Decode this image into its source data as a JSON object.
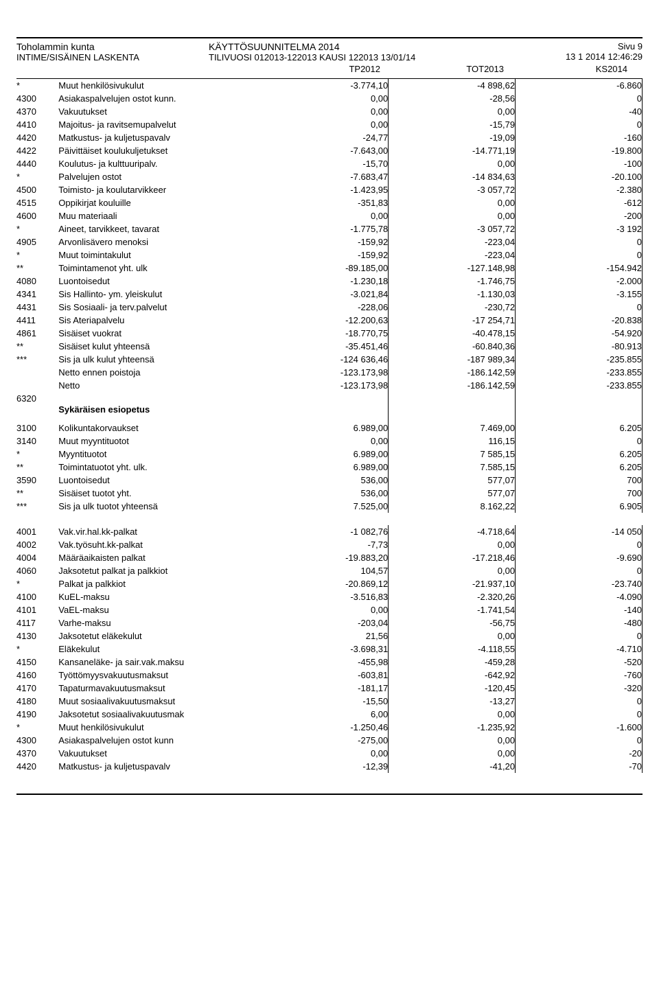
{
  "header": {
    "org": "Toholammin kunta",
    "sub": "INTIME/SISÄINEN LASKENTA",
    "title": "KÄYTTÖSUUNNITELMA 2014",
    "period": "TILIVUOSI 012013-122013 KAUSI 122013 13/01/14",
    "page": "Sivu  9",
    "timestamp": "13 1 2014 12:46:29"
  },
  "columns": {
    "c1": "TP2012",
    "c2": "TOT2013",
    "c3": "KS2014"
  },
  "rows": [
    {
      "code": "*",
      "desc": "Muut henkilösivukulut",
      "v1": "-3.774,10",
      "v2": "-4 898,62",
      "v3": "-6.860"
    },
    {
      "code": "4300",
      "desc": "Asiakaspalvelujen ostot kunn.",
      "v1": "0,00",
      "v2": "-28,56",
      "v3": "0"
    },
    {
      "code": "4370",
      "desc": "Vakuutukset",
      "v1": "0,00",
      "v2": "0,00",
      "v3": "-40"
    },
    {
      "code": "4410",
      "desc": "Majoitus- ja ravitsemupalvelut",
      "v1": "0,00",
      "v2": "-15,79",
      "v3": "0"
    },
    {
      "code": "4420",
      "desc": "Matkustus- ja kuljetuspavalv",
      "v1": "-24,77",
      "v2": "-19,09",
      "v3": "-160"
    },
    {
      "code": "4422",
      "desc": "Päivittäiset koulukuljetukset",
      "v1": "-7.643,00",
      "v2": "-14.771,19",
      "v3": "-19.800"
    },
    {
      "code": "4440",
      "desc": "Koulutus- ja kulttuuripalv.",
      "v1": "-15,70",
      "v2": "0,00",
      "v3": "-100"
    },
    {
      "code": "*",
      "desc": "Palvelujen ostot",
      "v1": "-7.683,47",
      "v2": "-14 834,63",
      "v3": "-20.100"
    },
    {
      "code": "4500",
      "desc": "Toimisto- ja koulutarvikkeer",
      "v1": "-1.423,95",
      "v2": "-3 057,72",
      "v3": "-2.380"
    },
    {
      "code": "4515",
      "desc": "Oppikirjat kouluille",
      "v1": "-351,83",
      "v2": "0,00",
      "v3": "-612"
    },
    {
      "code": "4600",
      "desc": "Muu materiaali",
      "v1": "0,00",
      "v2": "0,00",
      "v3": "-200"
    },
    {
      "code": "*",
      "desc": "Aineet, tarvikkeet, tavarat",
      "v1": "-1.775,78",
      "v2": "-3 057,72",
      "v3": "-3 192"
    },
    {
      "code": "4905",
      "desc": "Arvonlisävero menoksi",
      "v1": "-159,92",
      "v2": "-223,04",
      "v3": "0"
    },
    {
      "code": "*",
      "desc": "Muut toimintakulut",
      "v1": "-159,92",
      "v2": "-223,04",
      "v3": "0"
    },
    {
      "code": "**",
      "desc": "Toimintamenot yht. ulk",
      "v1": "-89.185,00",
      "v2": "-127.148,98",
      "v3": "-154.942"
    },
    {
      "code": "4080",
      "desc": "Luontoisedut",
      "v1": "-1.230,18",
      "v2": "-1.746,75",
      "v3": "-2.000"
    },
    {
      "code": "4341",
      "desc": "Sis Hallinto- ym. yleiskulut",
      "v1": "-3.021,84",
      "v2": "-1.130,03",
      "v3": "-3.155"
    },
    {
      "code": "4431",
      "desc": "Sis Sosiaali- ja terv.palvelut",
      "v1": "-228,06",
      "v2": "-230,72",
      "v3": "0"
    },
    {
      "code": "4411",
      "desc": "Sis Ateriapalvelu",
      "v1": "-12.200,63",
      "v2": "-17 254,71",
      "v3": "-20.838"
    },
    {
      "code": "4861",
      "desc": "Sisäiset vuokrat",
      "v1": "-18.770,75",
      "v2": "-40.478,15",
      "v3": "-54.920"
    },
    {
      "code": "**",
      "desc": "Sisäiset kulut yhteensä",
      "v1": "-35.451,46",
      "v2": "-60.840,36",
      "v3": "-80.913"
    },
    {
      "code": "***",
      "desc": "Sis ja ulk kulut yhteensä",
      "v1": "-124 636,46",
      "v2": "-187 989,34",
      "v3": "-235.855"
    },
    {
      "code": "",
      "desc": "Netto ennen poistoja",
      "v1": "-123.173,98",
      "v2": "-186.142,59",
      "v3": "-233.855"
    },
    {
      "code": "",
      "desc": "Netto",
      "v1": "-123.173,98",
      "v2": "-186.142,59",
      "v3": "-233.855"
    },
    {
      "section": true,
      "code": "6320",
      "desc": "Sykäräisen esiopetus"
    },
    {
      "code": "3100",
      "desc": "Kolikuntakorvaukset",
      "v1": "6.989,00",
      "v2": "7.469,00",
      "v3": "6.205"
    },
    {
      "code": "3140",
      "desc": "Muut myyntituotot",
      "v1": "0,00",
      "v2": "116,15",
      "v3": "0"
    },
    {
      "code": "*",
      "desc": "Myyntituotot",
      "v1": "6.989,00",
      "v2": "7 585,15",
      "v3": "6.205"
    },
    {
      "code": "**",
      "desc": "Toimintatuotot yht. ulk.",
      "v1": "6.989,00",
      "v2": "7.585,15",
      "v3": "6.205"
    },
    {
      "code": "3590",
      "desc": "Luontoisedut",
      "v1": "536,00",
      "v2": "577,07",
      "v3": "700"
    },
    {
      "code": "**",
      "desc": "Sisäiset tuotot yht.",
      "v1": "536,00",
      "v2": "577,07",
      "v3": "700"
    },
    {
      "code": "***",
      "desc": "Sis ja ulk tuotot yhteensä",
      "v1": "7.525,00",
      "v2": "8.162,22",
      "v3": "6.905"
    },
    {
      "spacer": true
    },
    {
      "code": "4001",
      "desc": "Vak.vir.hal.kk-palkat",
      "v1": "-1 082,76",
      "v2": "-4.718,64",
      "v3": "-14 050"
    },
    {
      "code": "4002",
      "desc": "Vak.työsuht.kk-palkat",
      "v1": "-7,73",
      "v2": "0,00",
      "v3": "0"
    },
    {
      "code": "4004",
      "desc": "Määräaikaisten palkat",
      "v1": "-19.883,20",
      "v2": "-17.218,46",
      "v3": "-9.690"
    },
    {
      "code": "4060",
      "desc": "Jaksotetut palkat ja palkkiot",
      "v1": "104,57",
      "v2": "0,00",
      "v3": "0"
    },
    {
      "code": "*",
      "desc": "Palkat ja palkkiot",
      "v1": "-20.869,12",
      "v2": "-21.937,10",
      "v3": "-23.740"
    },
    {
      "code": "4100",
      "desc": "KuEL-maksu",
      "v1": "-3.516,83",
      "v2": "-2.320,26",
      "v3": "-4.090"
    },
    {
      "code": "4101",
      "desc": "VaEL-maksu",
      "v1": "0,00",
      "v2": "-1.741,54",
      "v3": "-140"
    },
    {
      "code": "4117",
      "desc": "Varhe-maksu",
      "v1": "-203,04",
      "v2": "-56,75",
      "v3": "-480"
    },
    {
      "code": "4130",
      "desc": "Jaksotetut eläkekulut",
      "v1": "21,56",
      "v2": "0,00",
      "v3": "0"
    },
    {
      "code": "*",
      "desc": "Eläkekulut",
      "v1": "-3.698,31",
      "v2": "-4.118,55",
      "v3": "-4.710"
    },
    {
      "code": "4150",
      "desc": "Kansaneläke- ja sair.vak.maksu",
      "v1": "-455,98",
      "v2": "-459,28",
      "v3": "-520"
    },
    {
      "code": "4160",
      "desc": "Työttömyysvakuutusmaksut",
      "v1": "-603,81",
      "v2": "-642,92",
      "v3": "-760"
    },
    {
      "code": "4170",
      "desc": "Tapaturmavakuutusmaksut",
      "v1": "-181,17",
      "v2": "-120,45",
      "v3": "-320"
    },
    {
      "code": "4180",
      "desc": "Muut sosiaalivakuutusmaksut",
      "v1": "-15,50",
      "v2": "-13,27",
      "v3": "0"
    },
    {
      "code": "4190",
      "desc": "Jaksotetut sosiaalivakuutusmak",
      "v1": "6,00",
      "v2": "0,00",
      "v3": "0"
    },
    {
      "code": "*",
      "desc": "Muut henkilösivukulut",
      "v1": "-1.250,46",
      "v2": "-1.235,92",
      "v3": "-1.600"
    },
    {
      "code": "4300",
      "desc": "Asiakaspalvelujen ostot kunn",
      "v1": "-275,00",
      "v2": "0,00",
      "v3": "0"
    },
    {
      "code": "4370",
      "desc": "Vakuutukset",
      "v1": "0,00",
      "v2": "0,00",
      "v3": "-20"
    },
    {
      "code": "4420",
      "desc": "Matkustus- ja kuljetuspavalv",
      "v1": "-12,39",
      "v2": "-41,20",
      "v3": "-70"
    }
  ]
}
